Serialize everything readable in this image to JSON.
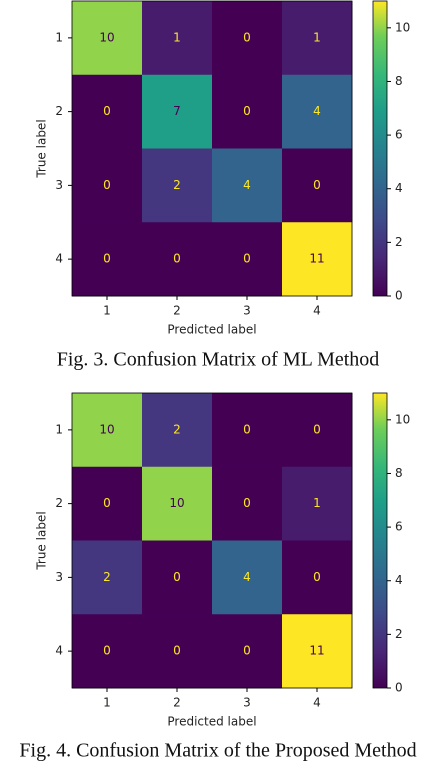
{
  "chart_data": [
    {
      "type": "heatmap",
      "caption": "Fig. 3.  Confusion Matrix of ML Method",
      "x_categories": [
        "1",
        "2",
        "3",
        "4"
      ],
      "y_categories": [
        "1",
        "2",
        "3",
        "4"
      ],
      "x_label": "Predicted label",
      "y_label": "True label",
      "values": [
        [
          10,
          1,
          0,
          1
        ],
        [
          0,
          7,
          0,
          4
        ],
        [
          0,
          2,
          4,
          0
        ],
        [
          0,
          0,
          0,
          11
        ]
      ],
      "colormap": "viridis",
      "clim": [
        0,
        11
      ],
      "cticks": [
        0,
        2,
        4,
        6,
        8,
        10
      ]
    },
    {
      "type": "heatmap",
      "caption": "Fig. 4.  Confusion Matrix of the Proposed Method",
      "x_categories": [
        "1",
        "2",
        "3",
        "4"
      ],
      "y_categories": [
        "1",
        "2",
        "3",
        "4"
      ],
      "x_label": "Predicted label",
      "y_label": "True label",
      "values": [
        [
          10,
          2,
          0,
          0
        ],
        [
          0,
          10,
          0,
          1
        ],
        [
          2,
          0,
          4,
          0
        ],
        [
          0,
          0,
          0,
          11
        ]
      ],
      "colormap": "viridis",
      "clim": [
        0,
        11
      ],
      "cticks": [
        0,
        2,
        4,
        6,
        8,
        10
      ]
    }
  ]
}
